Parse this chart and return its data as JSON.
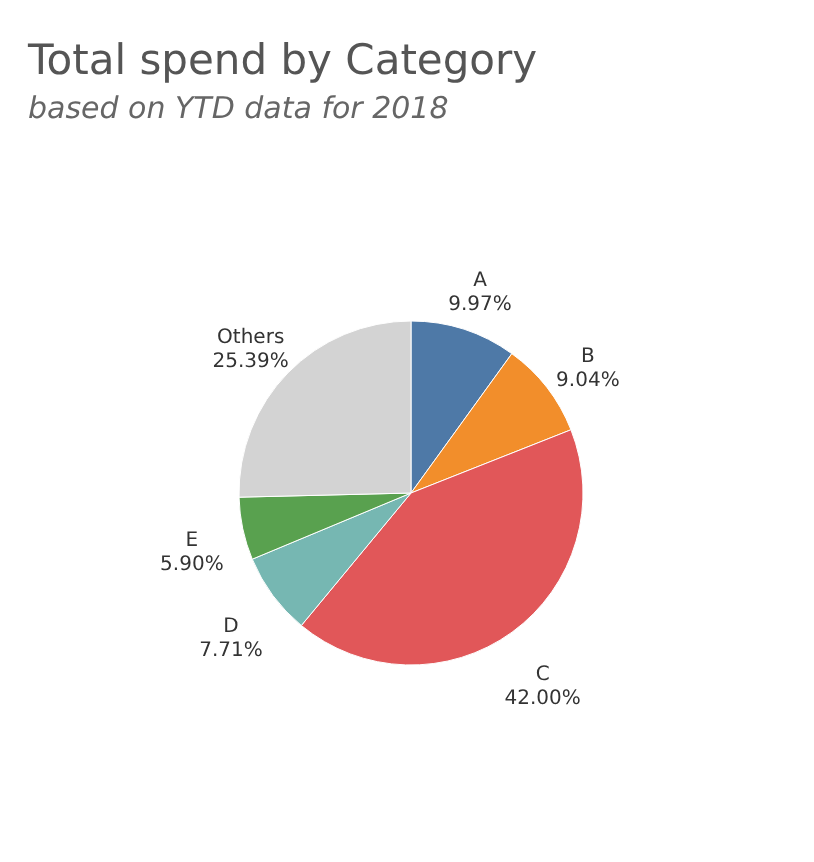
{
  "chart_data": {
    "type": "pie",
    "title": "Total spend by Category",
    "subtitle": "based on YTD data for 2018",
    "categories": [
      "A",
      "B",
      "C",
      "D",
      "E",
      "Others"
    ],
    "values": [
      9.97,
      9.04,
      42.0,
      7.71,
      5.9,
      25.39
    ],
    "value_labels": [
      "9.97%",
      "9.04%",
      "42.00%",
      "7.71%",
      "5.90%",
      "25.39%"
    ],
    "colors": [
      "#4e79a7",
      "#f28e2b",
      "#e15759",
      "#76b7b2",
      "#59a14f",
      "#d3d3d3"
    ],
    "legend": false
  }
}
